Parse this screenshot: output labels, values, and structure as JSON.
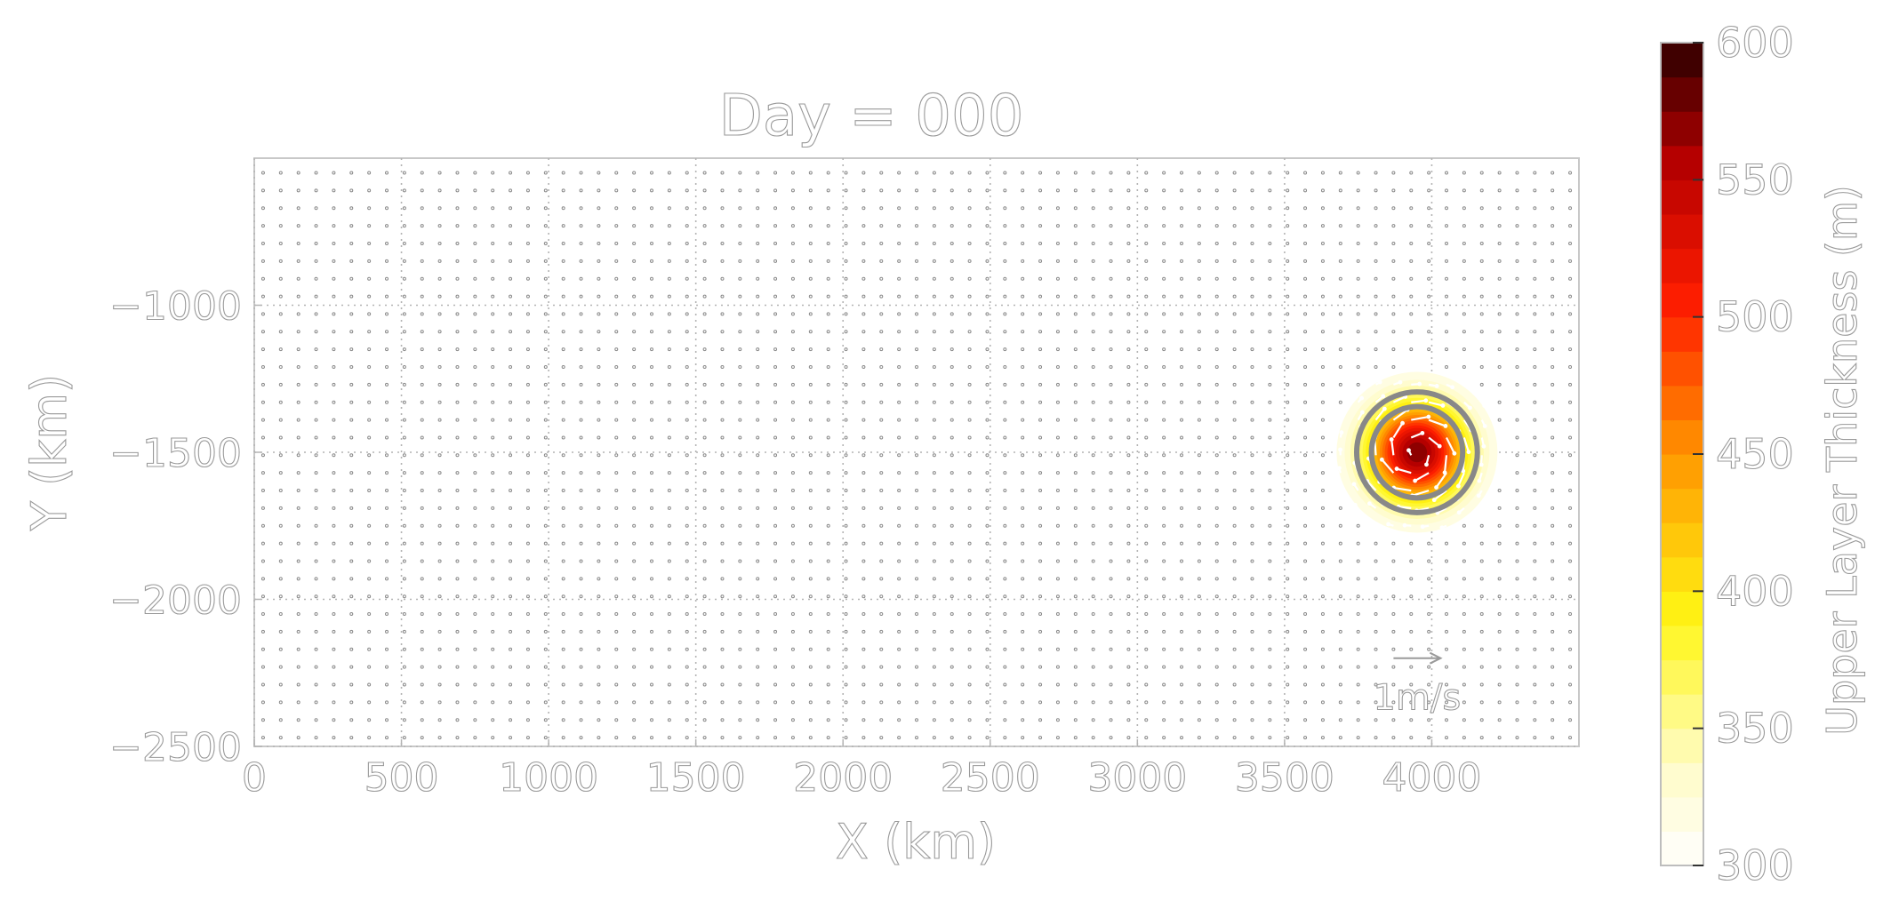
{
  "chart_data": {
    "type": "heatmap",
    "title": "Day = 000",
    "xlabel": "X (km)",
    "ylabel": "Y (km)",
    "xlim": [
      0,
      4500
    ],
    "ylim": [
      -2500,
      -500
    ],
    "x_ticks": [
      0,
      500,
      1000,
      1500,
      2000,
      2500,
      3000,
      3500,
      4000
    ],
    "x_tick_labels": [
      "0",
      "500",
      "1000",
      "1500",
      "2000",
      "2500",
      "3000",
      "3500",
      "4000"
    ],
    "y_ticks": [
      -1000,
      -1500,
      -2000,
      -2500
    ],
    "y_tick_labels": [
      "−1000",
      "−1500",
      "−2000",
      "−2500"
    ],
    "grid": true,
    "eddy": {
      "center_x_km": 3950,
      "center_y_km": -1500,
      "outer_radius_km": 280,
      "peak_thickness_m": 580,
      "background_thickness_m": 300,
      "contour_radii_km": [
        155,
        205
      ],
      "rotation": "clockwise"
    },
    "velocity_field": {
      "grid_spacing_km": 60,
      "reference_arrow": {
        "x_km": 3950,
        "y_km": -2200,
        "length_km": 160,
        "label": "1m/s"
      }
    },
    "colorbar": {
      "label": "Upper Layer Thickness (m)",
      "min": 300,
      "max": 600,
      "ticks": [
        300,
        350,
        400,
        450,
        500,
        550,
        600
      ],
      "tick_labels": [
        "300",
        "350",
        "400",
        "450",
        "500",
        "550",
        "600"
      ],
      "n_levels": 24,
      "colormap": "hot_r"
    }
  }
}
